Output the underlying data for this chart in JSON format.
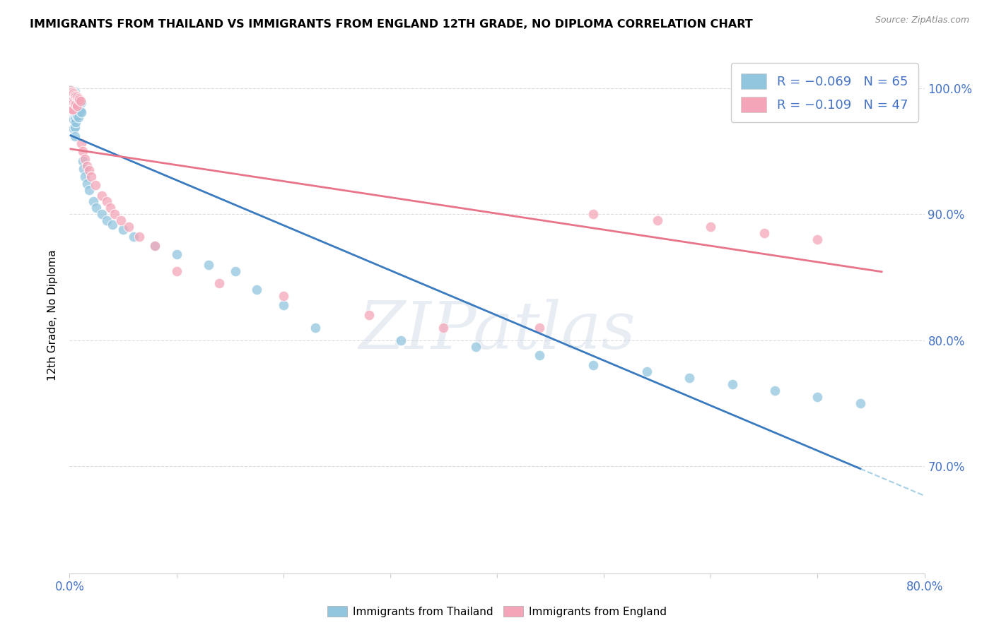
{
  "title": "IMMIGRANTS FROM THAILAND VS IMMIGRANTS FROM ENGLAND 12TH GRADE, NO DIPLOMA CORRELATION CHART",
  "source": "Source: ZipAtlas.com",
  "ylabel": "12th Grade, No Diploma",
  "legend_blue_label": "R = −0.069   N = 65",
  "legend_pink_label": "R = −0.109   N = 47",
  "legend_bottom_blue": "Immigrants from Thailand",
  "legend_bottom_pink": "Immigrants from England",
  "blue_color": "#92c5de",
  "pink_color": "#f4a6b8",
  "blue_line_color": "#3a7abf",
  "pink_line_color": "#e8748a",
  "dashed_color": "#92c5de",
  "x_range": [
    0.0,
    0.8
  ],
  "y_range": [
    0.615,
    1.025
  ],
  "x_ticks": [
    0.0,
    0.1,
    0.2,
    0.3,
    0.4,
    0.5,
    0.6,
    0.7,
    0.8
  ],
  "y_ticks": [
    0.7,
    0.8,
    0.9,
    1.0
  ],
  "background_color": "#ffffff",
  "grid_color": "#dddddd",
  "watermark": "ZIPatlas",
  "blue_scatter_x": [
    0.001,
    0.001,
    0.002,
    0.002,
    0.002,
    0.003,
    0.003,
    0.003,
    0.003,
    0.004,
    0.004,
    0.004,
    0.004,
    0.004,
    0.005,
    0.005,
    0.005,
    0.005,
    0.005,
    0.005,
    0.006,
    0.006,
    0.006,
    0.006,
    0.007,
    0.007,
    0.007,
    0.008,
    0.008,
    0.008,
    0.009,
    0.009,
    0.01,
    0.01,
    0.011,
    0.011,
    0.012,
    0.013,
    0.014,
    0.016,
    0.018,
    0.022,
    0.025,
    0.03,
    0.035,
    0.04,
    0.05,
    0.06,
    0.08,
    0.1,
    0.13,
    0.155,
    0.175,
    0.2,
    0.23,
    0.31,
    0.38,
    0.44,
    0.49,
    0.54,
    0.58,
    0.62,
    0.66,
    0.7,
    0.74
  ],
  "blue_scatter_y": [
    0.999,
    0.993,
    0.998,
    0.991,
    0.985,
    0.997,
    0.99,
    0.983,
    0.976,
    0.996,
    0.989,
    0.982,
    0.975,
    0.968,
    0.997,
    0.99,
    0.983,
    0.976,
    0.969,
    0.962,
    0.994,
    0.987,
    0.98,
    0.973,
    0.993,
    0.986,
    0.978,
    0.992,
    0.985,
    0.977,
    0.991,
    0.983,
    0.99,
    0.982,
    0.989,
    0.981,
    0.942,
    0.936,
    0.93,
    0.924,
    0.919,
    0.91,
    0.905,
    0.9,
    0.895,
    0.892,
    0.888,
    0.882,
    0.875,
    0.868,
    0.86,
    0.855,
    0.84,
    0.828,
    0.81,
    0.8,
    0.795,
    0.788,
    0.78,
    0.775,
    0.77,
    0.765,
    0.76,
    0.755,
    0.75
  ],
  "pink_scatter_x": [
    0.001,
    0.001,
    0.001,
    0.002,
    0.002,
    0.002,
    0.003,
    0.003,
    0.003,
    0.004,
    0.004,
    0.005,
    0.005,
    0.006,
    0.006,
    0.007,
    0.007,
    0.008,
    0.009,
    0.01,
    0.011,
    0.012,
    0.014,
    0.016,
    0.018,
    0.02,
    0.024,
    0.03,
    0.035,
    0.038,
    0.042,
    0.048,
    0.055,
    0.065,
    0.08,
    0.1,
    0.14,
    0.2,
    0.28,
    0.35,
    0.44,
    0.49,
    0.55,
    0.6,
    0.65,
    0.7,
    0.76
  ],
  "pink_scatter_y": [
    0.998,
    0.991,
    0.984,
    0.997,
    0.99,
    0.983,
    0.997,
    0.99,
    0.983,
    0.996,
    0.989,
    0.995,
    0.988,
    0.994,
    0.987,
    0.993,
    0.986,
    0.992,
    0.991,
    0.99,
    0.956,
    0.95,
    0.944,
    0.938,
    0.935,
    0.93,
    0.923,
    0.915,
    0.91,
    0.905,
    0.9,
    0.895,
    0.89,
    0.882,
    0.875,
    0.855,
    0.845,
    0.835,
    0.82,
    0.81,
    0.81,
    0.9,
    0.895,
    0.89,
    0.885,
    0.88,
    1.0
  ]
}
